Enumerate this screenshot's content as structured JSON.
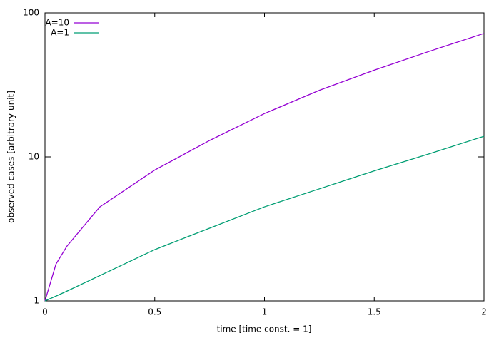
{
  "chart_data": {
    "type": "line",
    "xlabel": "time [time const. = 1]",
    "ylabel": "observed cases [arbitrary unit]",
    "x": [
      0,
      0.05,
      0.1,
      0.25,
      0.5,
      0.75,
      1,
      1.25,
      1.5,
      1.75,
      2
    ],
    "series": [
      {
        "name": "A=10",
        "color": "#9400d3",
        "values": [
          1,
          1.8,
          2.4,
          4.5,
          8.1,
          13,
          20,
          29,
          40,
          54,
          72
        ]
      },
      {
        "name": "A=1",
        "color": "#009e73",
        "values": [
          1,
          1.08,
          1.17,
          1.5,
          2.27,
          3.2,
          4.5,
          6,
          8,
          10.5,
          13.9
        ]
      }
    ],
    "xlim": [
      0,
      2
    ],
    "xticks": [
      0,
      0.5,
      1,
      1.5,
      2
    ],
    "ylim": [
      1,
      100
    ],
    "yticks": [
      1,
      10,
      100
    ],
    "yscale": "log",
    "legend": "top-left"
  }
}
